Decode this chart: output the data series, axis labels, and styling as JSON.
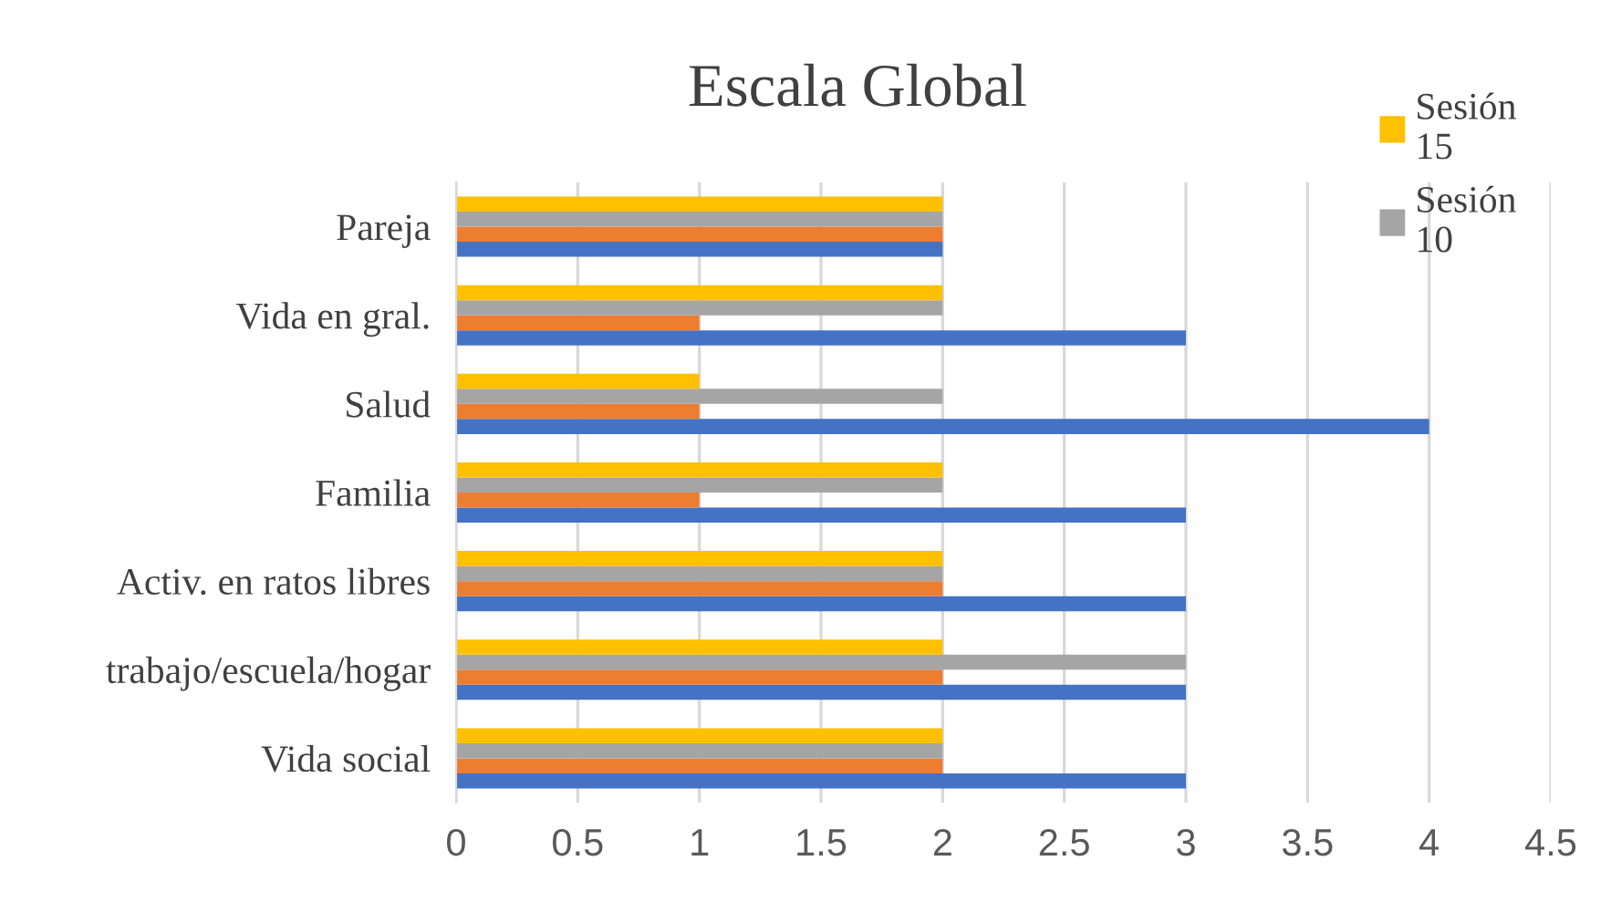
{
  "chart_data": {
    "type": "bar",
    "orientation": "horizontal",
    "title": "Escala Global",
    "categories": [
      "Pareja",
      "Vida en gral.",
      "Salud",
      "Familia",
      "Activ. en ratos libres",
      "trabajo/escuela/hogar",
      "Vida social"
    ],
    "series": [
      {
        "color": "#4472c4",
        "values": [
          2,
          3,
          4,
          3,
          3,
          3,
          3
        ]
      },
      {
        "color": "#ed7d31",
        "values": [
          2,
          1,
          1,
          1,
          2,
          2,
          2
        ]
      },
      {
        "name": "Sesión 10",
        "color": "#a5a5a5",
        "values": [
          2,
          2,
          2,
          2,
          2,
          3,
          2
        ]
      },
      {
        "name": "Sesión 15",
        "color": "#ffc000",
        "values": [
          2,
          2,
          1,
          2,
          2,
          2,
          2
        ]
      }
    ],
    "xlim": [
      0,
      4.5
    ],
    "xticks": [
      0,
      0.5,
      1,
      1.5,
      2,
      2.5,
      3,
      3.5,
      4,
      4.5
    ],
    "grid": "x",
    "legend": "top right"
  }
}
